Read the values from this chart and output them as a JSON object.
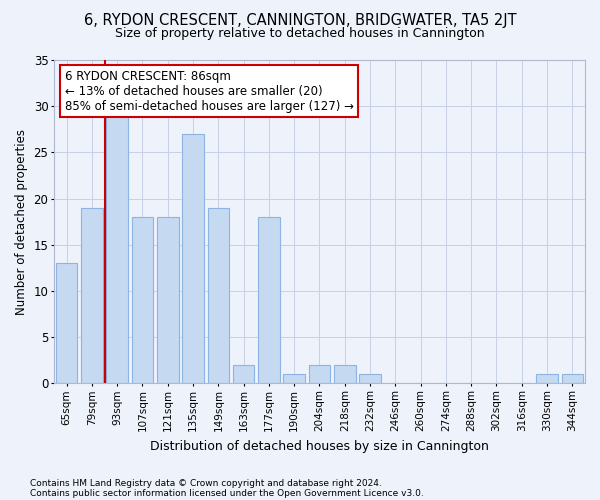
{
  "title": "6, RYDON CRESCENT, CANNINGTON, BRIDGWATER, TA5 2JT",
  "subtitle": "Size of property relative to detached houses in Cannington",
  "xlabel": "Distribution of detached houses by size in Cannington",
  "ylabel": "Number of detached properties",
  "categories": [
    "65sqm",
    "79sqm",
    "93sqm",
    "107sqm",
    "121sqm",
    "135sqm",
    "149sqm",
    "163sqm",
    "177sqm",
    "190sqm",
    "204sqm",
    "218sqm",
    "232sqm",
    "246sqm",
    "260sqm",
    "274sqm",
    "288sqm",
    "302sqm",
    "316sqm",
    "330sqm",
    "344sqm"
  ],
  "values": [
    13,
    19,
    29,
    18,
    18,
    27,
    19,
    2,
    18,
    1,
    2,
    2,
    1,
    0,
    0,
    0,
    0,
    0,
    0,
    1,
    1
  ],
  "bar_color": "#c5d9f1",
  "bar_edge_color": "#8db4e2",
  "ylim": [
    0,
    35
  ],
  "yticks": [
    0,
    5,
    10,
    15,
    20,
    25,
    30,
    35
  ],
  "vline_color": "#cc0000",
  "annotation_line1": "6 RYDON CRESCENT: 86sqm",
  "annotation_line2": "← 13% of detached houses are smaller (20)",
  "annotation_line3": "85% of semi-detached houses are larger (127) →",
  "annotation_box_color": "#ffffff",
  "annotation_box_edge": "#cc0000",
  "footnote1": "Contains HM Land Registry data © Crown copyright and database right 2024.",
  "footnote2": "Contains public sector information licensed under the Open Government Licence v3.0.",
  "background_color": "#eef2fb",
  "plot_background": "#eef2fb",
  "grid_color": "#c8d0e8"
}
